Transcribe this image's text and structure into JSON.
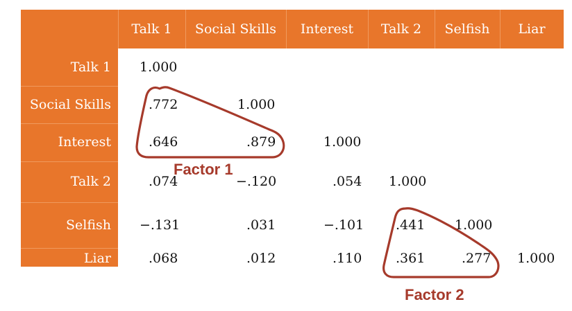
{
  "columns": [
    "Talk 1",
    "Social Skills",
    "Interest",
    "Talk 2",
    "Selfish",
    "Liar"
  ],
  "rows": [
    {
      "label": "Talk 1",
      "values": [
        "1.000",
        "",
        "",
        "",
        "",
        ""
      ]
    },
    {
      "label": "Social Skills",
      "values": [
        ".772",
        "1.000",
        "",
        "",
        "",
        ""
      ]
    },
    {
      "label": "Interest",
      "values": [
        ".646",
        ".879",
        "1.000",
        "",
        "",
        ""
      ]
    },
    {
      "label": "Talk 2",
      "values": [
        ".074",
        "−.120",
        ".054",
        "1.000",
        "",
        ""
      ]
    },
    {
      "label": "Selfish",
      "values": [
        "−.131",
        ".031",
        "−.101",
        ".441",
        "1.000",
        ""
      ]
    },
    {
      "label": "Liar",
      "values": [
        ".068",
        ".012",
        ".110",
        ".361",
        ".277",
        "1.000"
      ]
    }
  ],
  "annotations": {
    "factor1_label": "Factor 1",
    "factor2_label": "Factor 2"
  },
  "colors": {
    "header_fill": "#E8762B",
    "annotation": "#A63A2B"
  }
}
